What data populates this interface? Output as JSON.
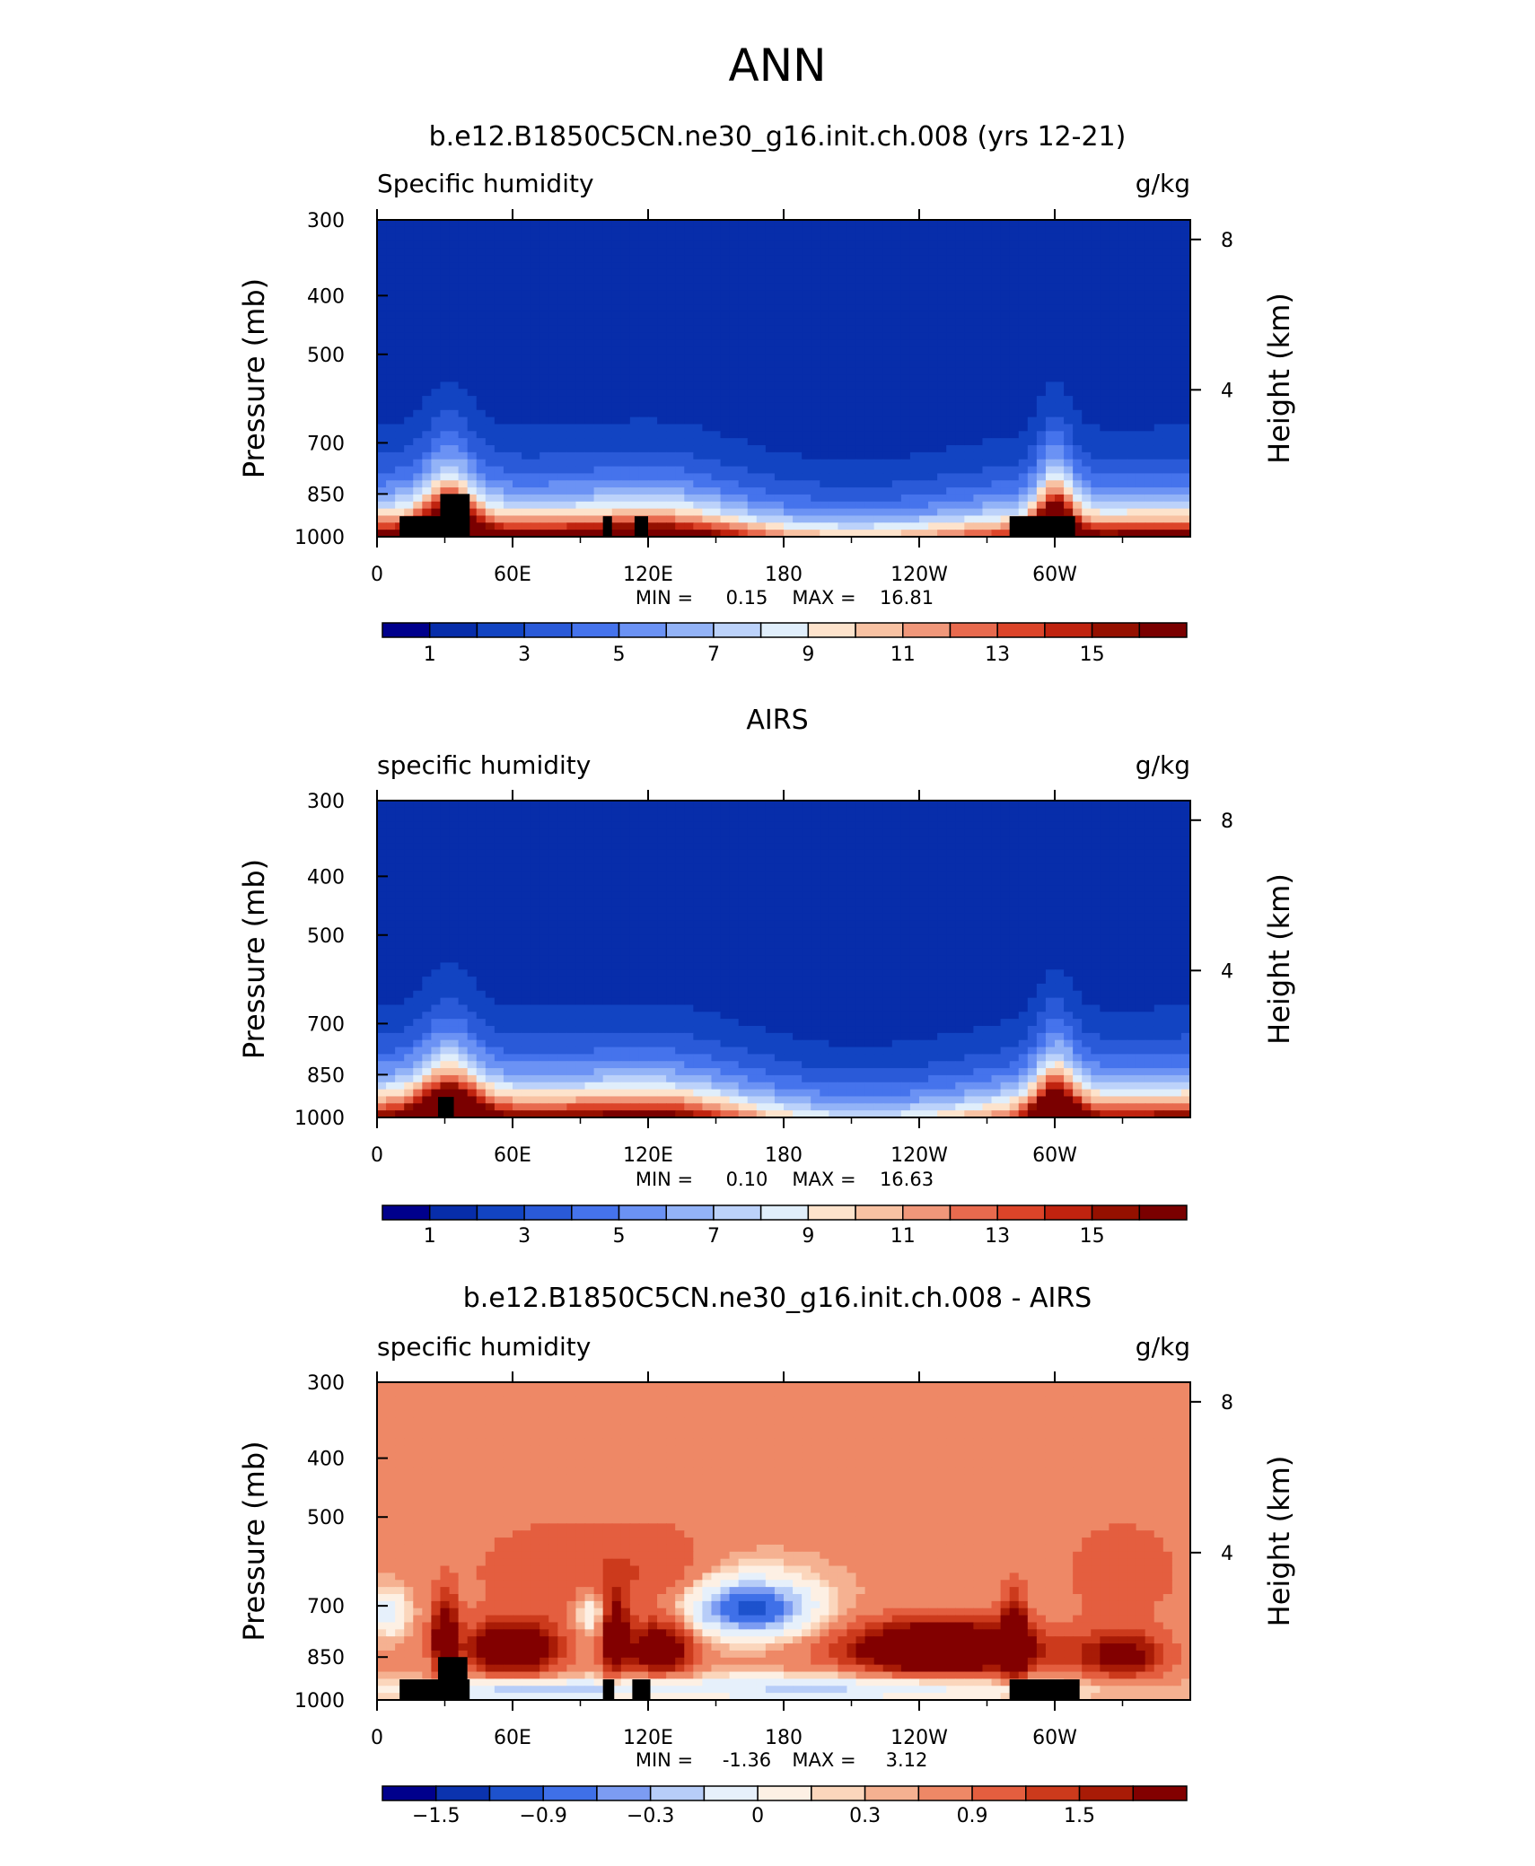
{
  "page_title": "ANN",
  "x_ticks": [
    "0",
    "60E",
    "120E",
    "180",
    "120W",
    "60W"
  ],
  "y_ticks": [
    "300",
    "400",
    "500",
    "700",
    "850",
    "1000"
  ],
  "right_ticks": [
    "8",
    "4"
  ],
  "left_axis_label": "Pressure (mb)",
  "right_axis_label": "Height (km)",
  "chart_data": [
    {
      "type": "heatmap",
      "title": "b.e12.B1850C5CN.ne30_g16.init.ch.008 (yrs 12-21)",
      "field": "Specific humidity",
      "units": "g/kg",
      "xlabel": "",
      "ylabel": "Pressure (mb)",
      "y2label": "Height (km)",
      "ylim": [
        1000,
        300
      ],
      "y_scale": "log",
      "xlim": [
        0,
        360
      ],
      "stats": {
        "min_label": "MIN =",
        "min": "0.15",
        "max_label": "MAX =",
        "max": "16.81"
      },
      "colorbar": {
        "levels": [
          0,
          1,
          2,
          3,
          4,
          5,
          6,
          7,
          8,
          9,
          10,
          11,
          12,
          13,
          14,
          15,
          16
        ],
        "labels": [
          "1",
          "3",
          "5",
          "7",
          "9",
          "11",
          "13",
          "15"
        ]
      },
      "land_blocks": [
        {
          "lon": [
            10,
            41
          ],
          "p_top": 925
        },
        {
          "lon": [
            28,
            41
          ],
          "p_top": 850
        },
        {
          "lon": [
            100,
            104
          ],
          "p_top": 925
        },
        {
          "lon": [
            114,
            120
          ],
          "p_top": 925
        },
        {
          "lon": [
            280,
            309
          ],
          "p_top": 925
        }
      ]
    },
    {
      "type": "heatmap",
      "title": "AIRS",
      "field": "specific humidity",
      "units": "g/kg",
      "xlabel": "",
      "ylabel": "Pressure (mb)",
      "y2label": "Height (km)",
      "ylim": [
        1000,
        300
      ],
      "y_scale": "log",
      "xlim": [
        0,
        360
      ],
      "stats": {
        "min_label": "MIN =",
        "min": "0.10",
        "max_label": "MAX =",
        "max": "16.63"
      },
      "colorbar": {
        "levels": [
          0,
          1,
          2,
          3,
          4,
          5,
          6,
          7,
          8,
          9,
          10,
          11,
          12,
          13,
          14,
          15,
          16
        ],
        "labels": [
          "1",
          "3",
          "5",
          "7",
          "9",
          "11",
          "13",
          "15"
        ]
      },
      "land_blocks": [
        {
          "lon": [
            27,
            34
          ],
          "p_top": 925
        }
      ]
    },
    {
      "type": "heatmap",
      "title": "b.e12.B1850C5CN.ne30_g16.init.ch.008 - AIRS",
      "field": "specific humidity",
      "units": "g/kg",
      "xlabel": "",
      "ylabel": "Pressure (mb)",
      "y2label": "Height (km)",
      "ylim": [
        1000,
        300
      ],
      "y_scale": "log",
      "xlim": [
        0,
        360
      ],
      "stats": {
        "min_label": "MIN =",
        "min": "-1.36",
        "max_label": "MAX =",
        "max": "3.12"
      },
      "colorbar": {
        "levels": [
          -2.1,
          -1.8,
          -1.5,
          -1.2,
          -0.9,
          -0.6,
          -0.3,
          0,
          0.15,
          0.3,
          0.6,
          0.9,
          1.2,
          1.5,
          1.8,
          2.1
        ],
        "labels": [
          "−1.5",
          "−0.9",
          "−0.3",
          "0",
          "0.3",
          "0.9",
          "1.5"
        ]
      },
      "land_blocks": [
        {
          "lon": [
            10,
            41
          ],
          "p_top": 925
        },
        {
          "lon": [
            27,
            40
          ],
          "p_top": 850
        },
        {
          "lon": [
            100,
            105
          ],
          "p_top": 925
        },
        {
          "lon": [
            113,
            121
          ],
          "p_top": 925
        },
        {
          "lon": [
            280,
            311
          ],
          "p_top": 925
        }
      ]
    }
  ],
  "colors": {
    "palette": [
      "#00008c",
      "#072daa",
      "#1244c2",
      "#2a5ad8",
      "#4573ec",
      "#6b92f4",
      "#93b3f7",
      "#bcd2fa",
      "#e0eefb",
      "#fde3cc",
      "#f8c2a3",
      "#f0977a",
      "#e86a4e",
      "#dc4429",
      "#c0230f",
      "#951000",
      "#7a0000"
    ],
    "diff_palette": [
      "#00008c",
      "#0b33ae",
      "#1d52cd",
      "#3f70e8",
      "#7c9cf2",
      "#b7cdf8",
      "#e6f0fb",
      "#fdf0e4",
      "#fbd6bc",
      "#f5b191",
      "#ee8866",
      "#e45e3f",
      "#cc3a1c",
      "#a81b06",
      "#820000"
    ]
  }
}
